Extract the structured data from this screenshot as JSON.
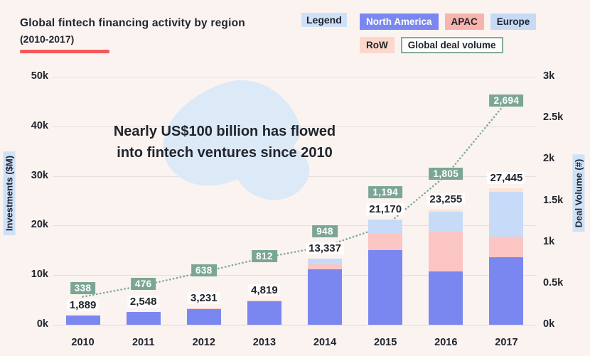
{
  "header": {
    "title": "Global fintech financing activity by region",
    "subtitle": "(2010-2017)",
    "accent_underline_color": "#f4595b"
  },
  "legend": {
    "label": "Legend",
    "items": [
      {
        "label": "North America",
        "color": "#7b87f0",
        "text_color": "#ffffff",
        "style": "fill"
      },
      {
        "label": "APAC",
        "color": "#f8b3ae",
        "text_color": "#20242c",
        "style": "fill"
      },
      {
        "label": "Europe",
        "color": "#c6daf8",
        "text_color": "#20242c",
        "style": "fill"
      },
      {
        "label": "RoW",
        "color": "#fcd8cb",
        "text_color": "#20242c",
        "style": "fill"
      },
      {
        "label": "Global deal volume",
        "color": "#83ab98",
        "text_color": "#20242c",
        "style": "outline"
      }
    ]
  },
  "annotation": {
    "line1": "Nearly US$100 billion has flowed",
    "line2": "into fintech ventures since 2010"
  },
  "chart_data": {
    "type": "bar",
    "subtype": "stacked-bar-with-line-overlay",
    "categories": [
      "2010",
      "2011",
      "2012",
      "2013",
      "2014",
      "2015",
      "2016",
      "2017"
    ],
    "series": [
      {
        "name": "North America",
        "color": "#7b87f0",
        "values": [
          1889,
          2548,
          3100,
          4680,
          11150,
          15095,
          10815,
          13655
        ]
      },
      {
        "name": "APAC",
        "color": "#fbc5c3",
        "values": [
          0,
          0,
          131,
          139,
          970,
          3246,
          7975,
          4140
        ]
      },
      {
        "name": "Europe",
        "color": "#c7dbf8",
        "values": [
          0,
          0,
          0,
          0,
          1217,
          2829,
          4045,
          8965
        ]
      },
      {
        "name": "RoW",
        "color": "#fde3d2",
        "values": [
          0,
          0,
          0,
          0,
          0,
          0,
          420,
          685
        ]
      }
    ],
    "bar_totals": {
      "values": [
        1889,
        2548,
        3231,
        4819,
        13337,
        21170,
        23255,
        27445
      ],
      "labels": [
        "1,889",
        "2,548",
        "3,231",
        "4,819",
        "13,337",
        "21,170",
        "23,255",
        "27,445"
      ]
    },
    "line": {
      "name": "Global deal volume",
      "color": "#7dab92",
      "badge_color": "#7ba695",
      "values": [
        338,
        476,
        638,
        812,
        948,
        1194,
        1805,
        2694
      ],
      "labels": [
        "338",
        "476",
        "638",
        "812",
        "948",
        "1,194",
        "1,805",
        "2,694"
      ]
    },
    "left_axis": {
      "title": "Investments ($M)",
      "max": 50000,
      "tick_values": [
        0,
        10000,
        20000,
        30000,
        40000,
        50000
      ],
      "tick_labels": [
        "0k",
        "10k",
        "20k",
        "30k",
        "40k",
        "50k"
      ]
    },
    "right_axis": {
      "title": "Deal Volume (#)",
      "max": 3000,
      "tick_values": [
        0,
        500,
        1000,
        1500,
        2000,
        2500,
        3000
      ],
      "tick_labels": [
        "0k",
        "0.5k",
        "1k",
        "1.5k",
        "2k",
        "2.5k",
        "3k"
      ]
    },
    "grid": "horizontal",
    "legend_position": "top-right"
  }
}
